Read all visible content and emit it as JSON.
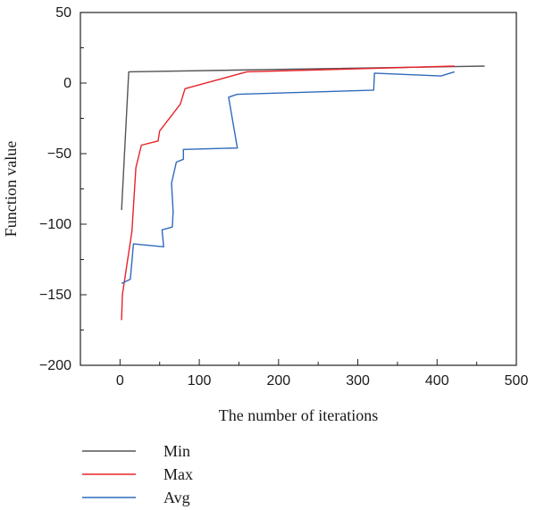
{
  "chart_data": {
    "type": "line",
    "xlabel": "The number of iterations",
    "ylabel": "Function value",
    "xlim": [
      -50,
      500
    ],
    "ylim": [
      -200,
      50
    ],
    "xticks": [
      0,
      100,
      200,
      300,
      400,
      500
    ],
    "yticks": [
      -200,
      -150,
      -100,
      -50,
      0,
      50
    ],
    "grid": false,
    "legend_position": "bottom-left",
    "series": [
      {
        "name": "Min",
        "color": "#555555",
        "points": [
          [
            2,
            -90
          ],
          [
            11,
            8
          ],
          [
            460,
            12
          ]
        ]
      },
      {
        "name": "Max",
        "color": "#e8232a",
        "points": [
          [
            2,
            -168
          ],
          [
            3,
            -150
          ],
          [
            15,
            -105
          ],
          [
            20,
            -60
          ],
          [
            27,
            -44
          ],
          [
            48,
            -41
          ],
          [
            50,
            -34
          ],
          [
            76,
            -15
          ],
          [
            82,
            -4
          ],
          [
            160,
            8
          ],
          [
            422,
            12
          ]
        ]
      },
      {
        "name": "Avg",
        "color": "#2f6bbd",
        "points": [
          [
            2,
            -142
          ],
          [
            13,
            -139
          ],
          [
            17,
            -114
          ],
          [
            55,
            -116
          ],
          [
            53,
            -104
          ],
          [
            66,
            -102
          ],
          [
            67,
            -91
          ],
          [
            65,
            -71
          ],
          [
            71,
            -56
          ],
          [
            80,
            -54
          ],
          [
            80,
            -47
          ],
          [
            148,
            -46
          ],
          [
            137,
            -10
          ],
          [
            148,
            -8
          ],
          [
            320,
            -5
          ],
          [
            321,
            7
          ],
          [
            405,
            5
          ],
          [
            422,
            8
          ]
        ]
      }
    ]
  }
}
